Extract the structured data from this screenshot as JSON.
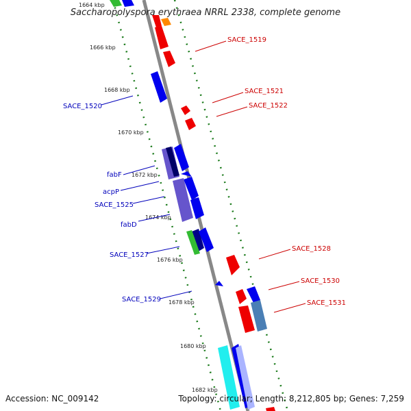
{
  "title": "Saccharopolyspora erythraea NRRL 2338, complete genome",
  "accession": "Accession: NC_009142",
  "topology": "Topology: circular; Length: 8,212,805 bp; Genes: 7,259",
  "ticks": [
    "1664 kbp",
    "1666 kbp",
    "1668 kbp",
    "1670 kbp",
    "1672 kbp",
    "1674 kbp",
    "1676 kbp",
    "1678 kbp",
    "1680 kbp",
    "1682 kbp"
  ],
  "forward_labels": [
    "SACE_1519",
    "SACE_1521",
    "SACE_1522",
    "SACE_1528",
    "SACE_1530",
    "SACE_1531"
  ],
  "reverse_labels": [
    "SACE_1520",
    "fabF",
    "acpP",
    "SACE_1525",
    "fabD",
    "SACE_1527",
    "SACE_1529"
  ],
  "colors": {
    "forward_gene": "#ee0000",
    "reverse_gene": "#0000ee",
    "fab_gene": "#6655cc",
    "green_gene": "#33bb33",
    "cyan_gene": "#22eeee",
    "steel_gene": "#4a7fb5",
    "backbone": "#888888",
    "gc_dots": "#116611"
  }
}
